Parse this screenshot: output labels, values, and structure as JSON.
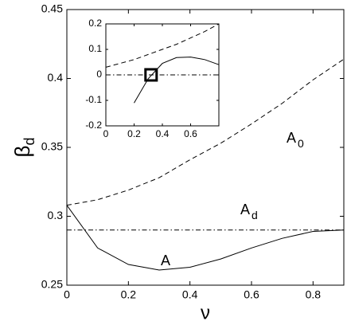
{
  "chart_data": [
    {
      "type": "line",
      "ylabel": "β",
      "ylabel_sub": "d",
      "xlabel": "ν",
      "x": [
        0,
        0.1,
        0.2,
        0.3,
        0.4,
        0.5,
        0.6,
        0.7,
        0.8,
        0.9
      ],
      "series": [
        {
          "name": "A",
          "subscript": "0",
          "color": "#000000",
          "dash": "dashed",
          "values": [
            0.308,
            0.312,
            0.319,
            0.328,
            0.341,
            0.353,
            0.367,
            0.382,
            0.399,
            0.414
          ]
        },
        {
          "name": "A",
          "subscript": "d",
          "color": "#000000",
          "dash": "dashdot",
          "values": [
            0.29,
            0.29,
            0.29,
            0.29,
            0.29,
            0.29,
            0.29,
            0.29,
            0.29,
            0.29
          ]
        },
        {
          "name": "A",
          "color": "#000000",
          "dash": "solid",
          "values": [
            0.308,
            0.277,
            0.265,
            0.261,
            0.263,
            0.269,
            0.277,
            0.284,
            0.289,
            0.29
          ]
        }
      ],
      "xlim": [
        0,
        0.9
      ],
      "ylim": [
        0.25,
        0.45
      ],
      "xticks": [
        0,
        0.2,
        0.4,
        0.6,
        0.8
      ],
      "yticks": [
        0.25,
        0.3,
        0.35,
        0.4,
        0.45
      ]
    },
    {
      "type": "line",
      "x": [
        0,
        0.1,
        0.2,
        0.3,
        0.4,
        0.5,
        0.6,
        0.7,
        0.8
      ],
      "series": [
        {
          "color": "#000000",
          "dash": "dashed",
          "values": [
            0.03,
            0.045,
            0.06,
            0.08,
            0.1,
            0.12,
            0.145,
            0.17,
            0.2
          ]
        },
        {
          "color": "#000000",
          "dash": "dashdot",
          "values": [
            0,
            0,
            0,
            0,
            0,
            0,
            0,
            0,
            0
          ]
        },
        {
          "color": "#000000",
          "dash": "solid",
          "values": [
            null,
            null,
            -0.11,
            -0.015,
            0.045,
            0.068,
            0.07,
            0.06,
            0.04
          ]
        }
      ],
      "marker": {
        "x": 0.32,
        "y": 0
      },
      "xlim": [
        0,
        0.8
      ],
      "ylim": [
        -0.2,
        0.2
      ],
      "xticks": [
        0,
        0.2,
        0.4,
        0.6
      ],
      "yticks": [
        -0.2,
        -0.1,
        0,
        0.1,
        0.2
      ]
    }
  ]
}
